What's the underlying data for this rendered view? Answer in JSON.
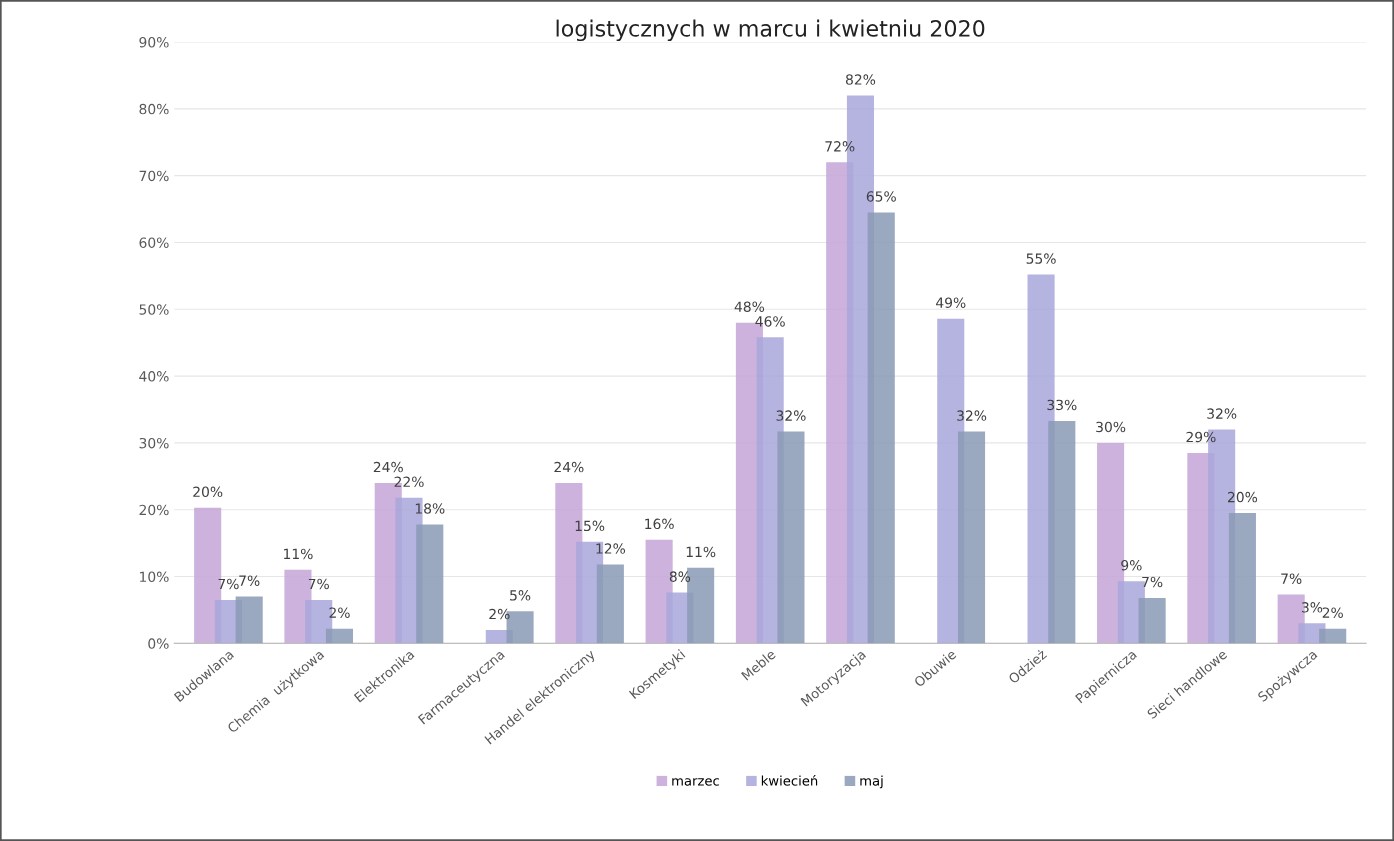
{
  "chart_data": {
    "type": "bar",
    "title": "logistycznych w marcu i kwietniu 2020",
    "categories": [
      "Budowlana",
      "Chemia  użytkowa",
      "Elektronika",
      "Farmaceutyczna",
      "Handel elektroniczny",
      "Kosmetyki",
      "Meble",
      "Motoryzacja",
      "Obuwie",
      "Odzież",
      "Papiernicza",
      "Sieci handlowe",
      "Spożywcza"
    ],
    "series": [
      {
        "name": "marzec",
        "color": "#c3a5d6",
        "values": [
          20.3,
          11,
          24,
          null,
          24,
          15.5,
          48,
          72,
          null,
          null,
          30,
          28.5,
          7.3
        ],
        "value_labels": [
          "20%",
          "11%",
          "24%",
          null,
          "24%",
          "16%",
          "48%",
          "72%",
          null,
          null,
          "30%",
          "29%",
          "7%"
        ]
      },
      {
        "name": "kwiecień",
        "color": "#a8a6da",
        "values": [
          6.5,
          6.5,
          21.8,
          2,
          15.2,
          7.6,
          45.8,
          82,
          48.6,
          55.2,
          9.3,
          32,
          3
        ],
        "value_labels": [
          "7%",
          "7%",
          "22%",
          "2%",
          "15%",
          "8%",
          "46%",
          "82%",
          "49%",
          "55%",
          "9%",
          "32%",
          "3%"
        ]
      },
      {
        "name": "maj",
        "color": "#8a9ab5",
        "values": [
          7,
          2.2,
          17.8,
          4.8,
          11.8,
          11.3,
          31.7,
          64.5,
          31.7,
          33.3,
          6.8,
          19.5,
          2.2
        ],
        "value_labels": [
          "7%",
          "2%",
          "18%",
          "5%",
          "12%",
          "11%",
          "32%",
          "65%",
          "32%",
          "33%",
          "7%",
          "20%",
          "2%"
        ]
      }
    ],
    "ylim": [
      0,
      90
    ],
    "yticks": [
      {
        "value": 0,
        "label": "0%"
      },
      {
        "value": 10,
        "label": "10%"
      },
      {
        "value": 20,
        "label": "20%"
      },
      {
        "value": 30,
        "label": "30%"
      },
      {
        "value": 40,
        "label": "40%"
      },
      {
        "value": 50,
        "label": "50%"
      },
      {
        "value": 60,
        "label": "60%"
      },
      {
        "value": 70,
        "label": "70%"
      },
      {
        "value": 80,
        "label": "80%"
      },
      {
        "value": 90,
        "label": "90%"
      }
    ],
    "grid": "y",
    "legend": "bottom"
  }
}
